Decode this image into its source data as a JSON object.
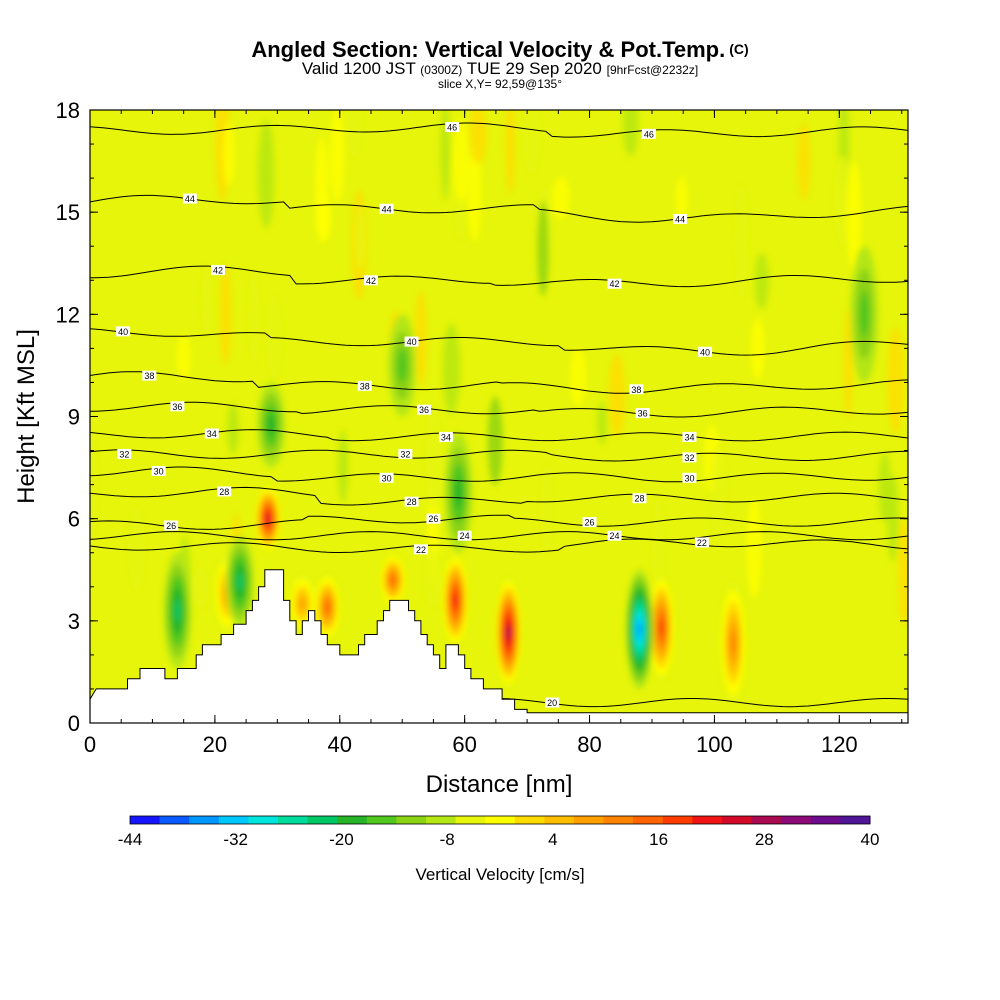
{
  "title": {
    "main": "Angled Section: Vertical Velocity & Pot.Temp.",
    "unit": "(C)",
    "valid_prefix": "Valid 1200 JST",
    "valid_z": "(0300Z)",
    "valid_date": "TUE 29 Sep 2020",
    "valid_fcst": "[9hrFcst@2232z]",
    "slice": "slice X,Y= 92,59@135°"
  },
  "chart_data": {
    "type": "heatmap",
    "xlabel": "Distance [nm]",
    "ylabel": "Height [Kft MSL]",
    "xlim": [
      0,
      131
    ],
    "ylim": [
      0,
      18
    ],
    "x_ticks": [
      "0",
      "20",
      "40",
      "60",
      "80",
      "100",
      "120"
    ],
    "y_ticks": [
      "0",
      "3",
      "6",
      "9",
      "12",
      "15",
      "18"
    ],
    "colorbar": {
      "label": "Vertical Velocity [cm/s]",
      "tick_labels": [
        "-44",
        "-32",
        "-20",
        "-8",
        "4",
        "16",
        "28",
        "40"
      ],
      "min": -44,
      "max": 40,
      "step": 4,
      "colors": [
        "#1414ff",
        "#0a5aff",
        "#0096ff",
        "#00c8ff",
        "#00e6dc",
        "#00dc9b",
        "#00c864",
        "#28b428",
        "#50c81e",
        "#8cd214",
        "#b4e614",
        "#e6f50a",
        "#ffff00",
        "#ffdc00",
        "#ffbe00",
        "#ffa000",
        "#ff8200",
        "#ff6400",
        "#ff3c00",
        "#f01414",
        "#d20a28",
        "#aa0a50",
        "#8c0a78",
        "#6e0a8c",
        "#501496"
      ]
    },
    "terrain_profile": [
      [
        0,
        0.7
      ],
      [
        1,
        1.0
      ],
      [
        6,
        1.0
      ],
      [
        6,
        1.3
      ],
      [
        8,
        1.3
      ],
      [
        8,
        1.6
      ],
      [
        12,
        1.6
      ],
      [
        12,
        1.3
      ],
      [
        14,
        1.3
      ],
      [
        14,
        1.6
      ],
      [
        17,
        1.6
      ],
      [
        17,
        2.0
      ],
      [
        18,
        2.0
      ],
      [
        18,
        2.3
      ],
      [
        21,
        2.3
      ],
      [
        21,
        2.6
      ],
      [
        23,
        2.6
      ],
      [
        23,
        2.9
      ],
      [
        25,
        2.9
      ],
      [
        25,
        3.3
      ],
      [
        26,
        3.3
      ],
      [
        26,
        3.6
      ],
      [
        27,
        3.6
      ],
      [
        27,
        4.0
      ],
      [
        28,
        4.0
      ],
      [
        28,
        4.5
      ],
      [
        31,
        4.5
      ],
      [
        31,
        3.6
      ],
      [
        32,
        3.6
      ],
      [
        32,
        3.0
      ],
      [
        33,
        3.0
      ],
      [
        33,
        2.6
      ],
      [
        34,
        2.6
      ],
      [
        34,
        3.0
      ],
      [
        35,
        3.0
      ],
      [
        35,
        3.3
      ],
      [
        36,
        3.3
      ],
      [
        36,
        3.0
      ],
      [
        37,
        3.0
      ],
      [
        37,
        2.6
      ],
      [
        38,
        2.6
      ],
      [
        38,
        2.3
      ],
      [
        40,
        2.3
      ],
      [
        40,
        2.0
      ],
      [
        43,
        2.0
      ],
      [
        43,
        2.3
      ],
      [
        44,
        2.3
      ],
      [
        44,
        2.6
      ],
      [
        46,
        2.6
      ],
      [
        46,
        3.0
      ],
      [
        47,
        3.0
      ],
      [
        47,
        3.3
      ],
      [
        48,
        3.3
      ],
      [
        48,
        3.6
      ],
      [
        51,
        3.6
      ],
      [
        51,
        3.3
      ],
      [
        52,
        3.3
      ],
      [
        52,
        3.0
      ],
      [
        53,
        3.0
      ],
      [
        53,
        2.6
      ],
      [
        54,
        2.6
      ],
      [
        54,
        2.3
      ],
      [
        55,
        2.3
      ],
      [
        55,
        2.0
      ],
      [
        56,
        2.0
      ],
      [
        56,
        1.6
      ],
      [
        57,
        1.6
      ],
      [
        57,
        2.3
      ],
      [
        59,
        2.3
      ],
      [
        59,
        2.0
      ],
      [
        60,
        2.0
      ],
      [
        60,
        1.6
      ],
      [
        61,
        1.6
      ],
      [
        61,
        1.3
      ],
      [
        63,
        1.3
      ],
      [
        63,
        1.0
      ],
      [
        66,
        1.0
      ],
      [
        66,
        0.7
      ],
      [
        68,
        0.7
      ],
      [
        68,
        0.4
      ],
      [
        70,
        0.4
      ],
      [
        70,
        0.3
      ],
      [
        131,
        0.3
      ]
    ],
    "updrafts": [
      {
        "x": 28.5,
        "ymin": 5,
        "ymax": 7,
        "peak": 36
      },
      {
        "x": 34,
        "ymin": 2.6,
        "ymax": 4.4,
        "peak": 16
      },
      {
        "x": 38,
        "ymin": 2.4,
        "ymax": 4.4,
        "peak": 24
      },
      {
        "x": 48.5,
        "ymin": 3.4,
        "ymax": 5,
        "peak": 24
      },
      {
        "x": 58.5,
        "ymin": 2.2,
        "ymax": 5,
        "peak": 32
      },
      {
        "x": 67,
        "ymin": 1.0,
        "ymax": 4.3,
        "peak": 40
      },
      {
        "x": 91.5,
        "ymin": 1.2,
        "ymax": 4.4,
        "peak": 28
      },
      {
        "x": 103,
        "ymin": 0.5,
        "ymax": 4.2,
        "peak": 20
      },
      {
        "x": 22,
        "ymin": 2.6,
        "ymax": 5,
        "peak": 16
      }
    ],
    "downdrafts": [
      {
        "x": 14,
        "ymin": 1.6,
        "ymax": 5,
        "peak": -16
      },
      {
        "x": 24,
        "ymin": 2.8,
        "ymax": 5.5,
        "peak": -16
      },
      {
        "x": 29,
        "ymin": 7.5,
        "ymax": 10,
        "peak": -12
      },
      {
        "x": 50,
        "ymin": 9,
        "ymax": 12,
        "peak": -8
      },
      {
        "x": 59,
        "ymin": 5,
        "ymax": 8.5,
        "peak": -12
      },
      {
        "x": 88,
        "ymin": 1.0,
        "ymax": 4.5,
        "peak": -32
      },
      {
        "x": 124,
        "ymin": 10,
        "ymax": 14,
        "peak": -8
      }
    ],
    "isentropes": [
      {
        "theta": 20,
        "label": "20",
        "label_x": 74,
        "label_y": 0.6
      },
      {
        "theta": 22,
        "label": "22",
        "label_x": 53,
        "label_y": 5.1
      },
      {
        "theta": 22,
        "label": "22",
        "label_x": 98,
        "label_y": 5.3
      },
      {
        "theta": 24,
        "label": "24",
        "label_x": 60,
        "label_y": 5.5
      },
      {
        "theta": 24,
        "label": "24",
        "label_x": 84,
        "label_y": 5.5
      },
      {
        "theta": 26,
        "label": "26",
        "label_x": 13,
        "label_y": 5.8
      },
      {
        "theta": 26,
        "label": "26",
        "label_x": 55,
        "label_y": 6.0
      },
      {
        "theta": 26,
        "label": "26",
        "label_x": 80,
        "label_y": 5.9
      },
      {
        "theta": 28,
        "label": "28",
        "label_x": 21.5,
        "label_y": 6.8
      },
      {
        "theta": 28,
        "label": "28",
        "label_x": 51.5,
        "label_y": 6.5
      },
      {
        "theta": 28,
        "label": "28",
        "label_x": 88,
        "label_y": 6.6
      },
      {
        "theta": 30,
        "label": "30",
        "label_x": 11,
        "label_y": 7.4
      },
      {
        "theta": 30,
        "label": "30",
        "label_x": 47.5,
        "label_y": 7.2
      },
      {
        "theta": 30,
        "label": "30",
        "label_x": 96,
        "label_y": 7.2
      },
      {
        "theta": 32,
        "label": "32",
        "label_x": 5.5,
        "label_y": 7.9
      },
      {
        "theta": 32,
        "label": "32",
        "label_x": 50.5,
        "label_y": 7.9
      },
      {
        "theta": 32,
        "label": "32",
        "label_x": 96,
        "label_y": 7.8
      },
      {
        "theta": 34,
        "label": "34",
        "label_x": 19.5,
        "label_y": 8.5
      },
      {
        "theta": 34,
        "label": "34",
        "label_x": 57,
        "label_y": 8.4
      },
      {
        "theta": 34,
        "label": "34",
        "label_x": 96,
        "label_y": 8.4
      },
      {
        "theta": 36,
        "label": "36",
        "label_x": 14,
        "label_y": 9.3
      },
      {
        "theta": 36,
        "label": "36",
        "label_x": 53.5,
        "label_y": 9.2
      },
      {
        "theta": 36,
        "label": "36",
        "label_x": 88.5,
        "label_y": 9.1
      },
      {
        "theta": 38,
        "label": "38",
        "label_x": 9.5,
        "label_y": 10.2
      },
      {
        "theta": 38,
        "label": "38",
        "label_x": 44,
        "label_y": 9.9
      },
      {
        "theta": 38,
        "label": "38",
        "label_x": 87.5,
        "label_y": 9.8
      },
      {
        "theta": 40,
        "label": "40",
        "label_x": 5.3,
        "label_y": 11.5
      },
      {
        "theta": 40,
        "label": "40",
        "label_x": 51.5,
        "label_y": 11.2
      },
      {
        "theta": 40,
        "label": "40",
        "label_x": 98.5,
        "label_y": 10.9
      },
      {
        "theta": 42,
        "label": "42",
        "label_x": 20.5,
        "label_y": 13.3
      },
      {
        "theta": 42,
        "label": "42",
        "label_x": 45,
        "label_y": 13.0
      },
      {
        "theta": 42,
        "label": "42",
        "label_x": 84,
        "label_y": 12.9
      },
      {
        "theta": 44,
        "label": "44",
        "label_x": 16,
        "label_y": 15.4
      },
      {
        "theta": 44,
        "label": "44",
        "label_x": 47.5,
        "label_y": 15.1
      },
      {
        "theta": 44,
        "label": "44",
        "label_x": 94.5,
        "label_y": 14.8
      },
      {
        "theta": 46,
        "label": "46",
        "label_x": 58,
        "label_y": 17.5
      },
      {
        "theta": 46,
        "label": "46",
        "label_x": 89.5,
        "label_y": 17.3
      }
    ]
  }
}
